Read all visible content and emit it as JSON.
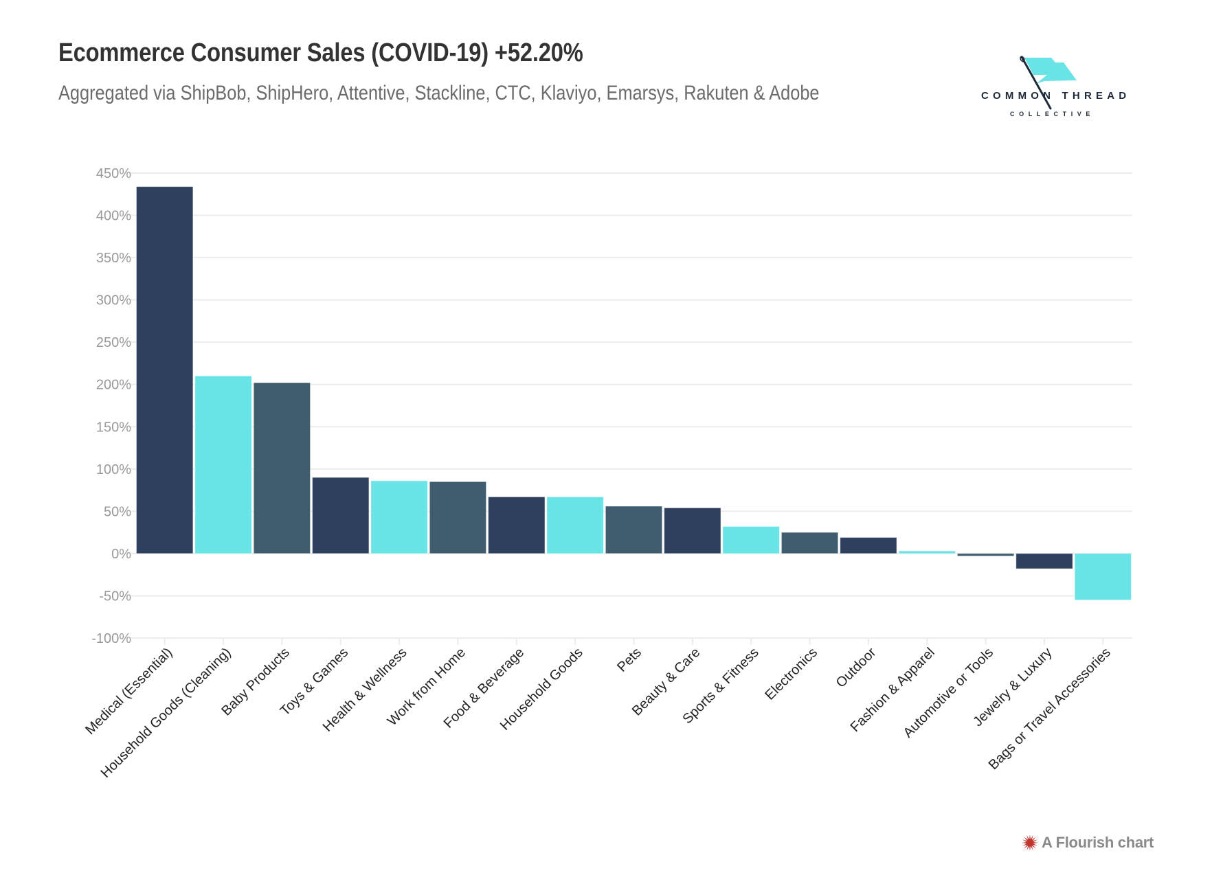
{
  "header": {
    "title": "Ecommerce Consumer Sales (COVID-19) +52.20%",
    "subtitle": "Aggregated via ShipBob, ShipHero, Attentive, Stackline, CTC, Klaviyo, Emarsys, Rakuten & Adobe"
  },
  "logo": {
    "name_main": "COMMON THREAD",
    "name_sub": "COLLECTIVE",
    "flag_color": "#68e3e6",
    "needle_color": "#1d2a3a"
  },
  "footer": {
    "credit": "A Flourish chart",
    "icon": "flourish-starburst-icon",
    "icon_color": "#c0342b"
  },
  "chart_data": {
    "type": "bar",
    "title": "Ecommerce Consumer Sales (COVID-19) +52.20%",
    "subtitle": "Aggregated via ShipBob, ShipHero, Attentive, Stackline, CTC, Klaviyo, Emarsys, Rakuten & Adobe",
    "xlabel": "",
    "ylabel": "",
    "ylim": [
      -100,
      450
    ],
    "yticks": [
      450,
      400,
      350,
      300,
      250,
      200,
      150,
      100,
      50,
      0,
      -50,
      -100
    ],
    "ytick_labels": [
      "450%",
      "400%",
      "350%",
      "300%",
      "250%",
      "200%",
      "150%",
      "100%",
      "50%",
      "0%",
      "-50%",
      "-100%"
    ],
    "value_suffix": "%",
    "grid": true,
    "legend": "none",
    "x_label_rotation": -45,
    "categories": [
      "Medical (Essential)",
      "Household Goods (Cleaning)",
      "Baby Products",
      "Toys & Games",
      "Health & Wellness",
      "Work from Home",
      "Food & Beverage",
      "Household Goods",
      "Pets",
      "Beauty & Care",
      "Sports & Fitness",
      "Electronics",
      "Outdoor",
      "Fashion & Apparel",
      "Automotive or Tools",
      "Jewelry & Luxury",
      "Bags or Travel Accessories"
    ],
    "values": [
      434,
      210,
      202,
      90,
      86,
      85,
      67,
      67,
      56,
      54,
      32,
      25,
      19,
      3,
      -3,
      -18,
      -55
    ],
    "bar_colors": [
      "#2f405e",
      "#68e3e6",
      "#405d6f"
    ],
    "colors": {
      "gridline": "#ececec",
      "axis_text": "#999999",
      "category_text": "#222222"
    }
  }
}
